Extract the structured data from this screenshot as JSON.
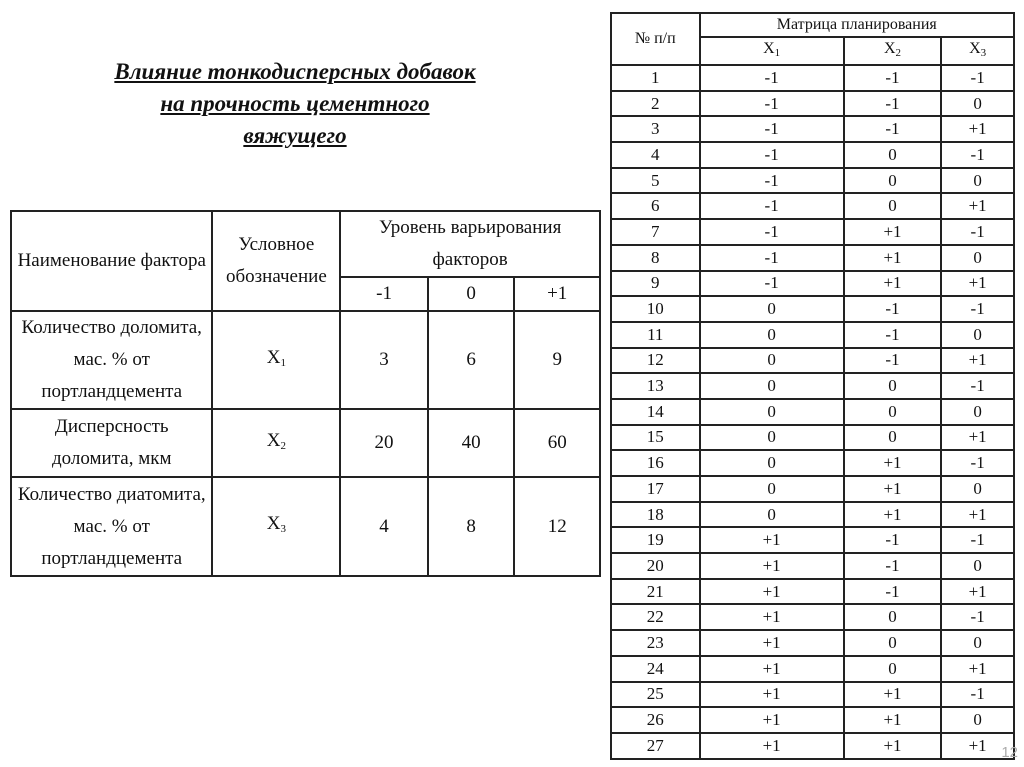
{
  "title": {
    "line1": "Влияние тонкодисперсных добавок",
    "line2": "на прочность цементного",
    "line3": "вяжущего"
  },
  "factors_table": {
    "headers": {
      "name": "Наименование фактора",
      "symbol": "Условное обозначение",
      "level": "Уровень варьирования факторов",
      "levels": [
        "-1",
        "0",
        "+1"
      ]
    },
    "rows": [
      {
        "name": "Количество доломита, мас. % от портландцемента",
        "symbol": "X",
        "sub": "1",
        "values": [
          "3",
          "6",
          "9"
        ]
      },
      {
        "name": "Дисперсность доломита, мкм",
        "symbol": "X",
        "sub": "2",
        "values": [
          "20",
          "40",
          "60"
        ]
      },
      {
        "name": "Количество диатомита, мас. % от портландцемента",
        "symbol": "X",
        "sub": "3",
        "values": [
          "4",
          "8",
          "12"
        ]
      }
    ]
  },
  "matrix_table": {
    "headers": {
      "num": "№ п/п",
      "matrix": "Матрица планирования",
      "cols": [
        {
          "s": "X",
          "sub": "1"
        },
        {
          "s": "X",
          "sub": "2"
        },
        {
          "s": "X",
          "sub": "3"
        }
      ]
    },
    "rows": [
      [
        "1",
        "-1",
        "-1",
        "-1"
      ],
      [
        "2",
        "-1",
        "-1",
        "0"
      ],
      [
        "3",
        "-1",
        "-1",
        "+1"
      ],
      [
        "4",
        "-1",
        "0",
        "-1"
      ],
      [
        "5",
        "-1",
        "0",
        "0"
      ],
      [
        "6",
        "-1",
        "0",
        "+1"
      ],
      [
        "7",
        "-1",
        "+1",
        "-1"
      ],
      [
        "8",
        "-1",
        "+1",
        "0"
      ],
      [
        "9",
        "-1",
        "+1",
        "+1"
      ],
      [
        "10",
        "0",
        "-1",
        "-1"
      ],
      [
        "11",
        "0",
        "-1",
        "0"
      ],
      [
        "12",
        "0",
        "-1",
        "+1"
      ],
      [
        "13",
        "0",
        "0",
        "-1"
      ],
      [
        "14",
        "0",
        "0",
        "0"
      ],
      [
        "15",
        "0",
        "0",
        "+1"
      ],
      [
        "16",
        "0",
        "+1",
        "-1"
      ],
      [
        "17",
        "0",
        "+1",
        "0"
      ],
      [
        "18",
        "0",
        "+1",
        "+1"
      ],
      [
        "19",
        "+1",
        "-1",
        "-1"
      ],
      [
        "20",
        "+1",
        "-1",
        "0"
      ],
      [
        "21",
        "+1",
        "-1",
        "+1"
      ],
      [
        "22",
        "+1",
        "0",
        "-1"
      ],
      [
        "23",
        "+1",
        "0",
        "0"
      ],
      [
        "24",
        "+1",
        "0",
        "+1"
      ],
      [
        "25",
        "+1",
        "+1",
        "-1"
      ],
      [
        "26",
        "+1",
        "+1",
        "0"
      ],
      [
        "27",
        "+1",
        "+1",
        "+1"
      ]
    ]
  },
  "page_number": "12"
}
